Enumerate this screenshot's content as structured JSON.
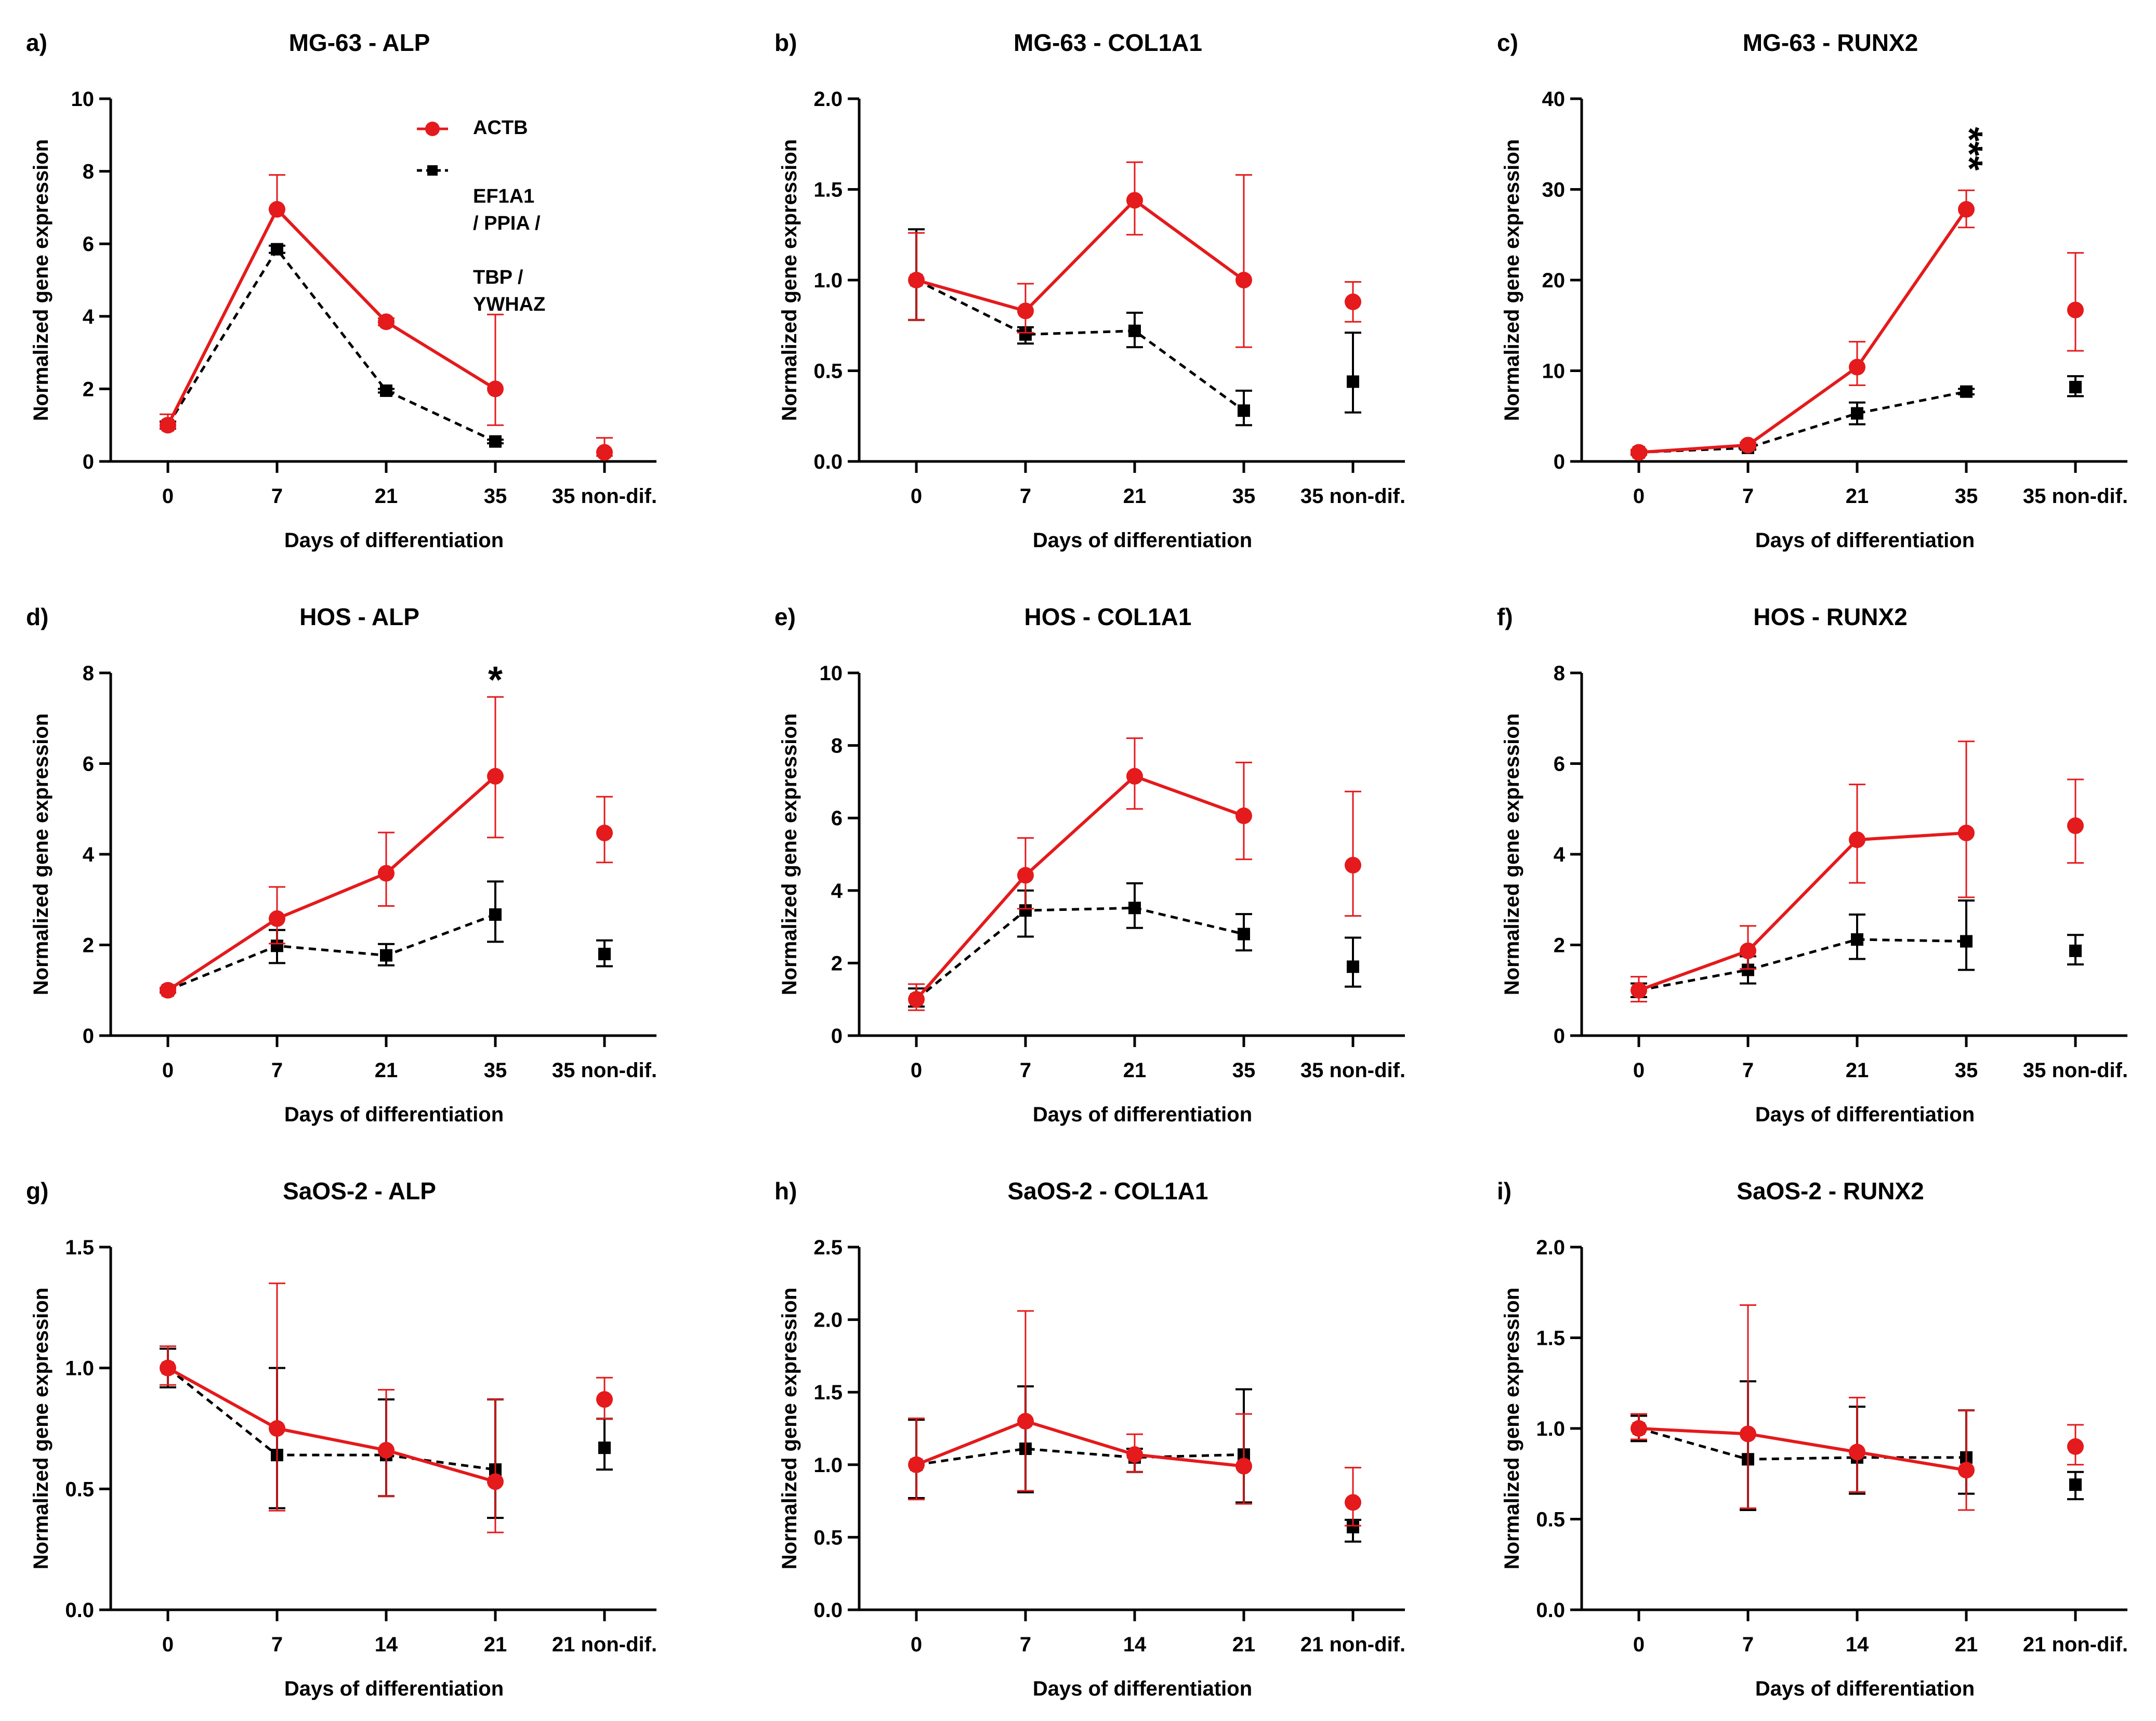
{
  "colors": {
    "actb": "#e41a1c",
    "ref": "#000000"
  },
  "legend": {
    "actb_label": "ACTB",
    "ref_label_line1": "EF1A1 / PPIA /",
    "ref_label_line2": "TBP / YWHAZ"
  },
  "chart_data": [
    {
      "id": "a",
      "letter": "a)",
      "title": "MG-63 - ALP",
      "type": "line",
      "xlabel": "Days of differentiation",
      "ylabel": "Normalized gene expression",
      "categories": [
        "0",
        "7",
        "21",
        "35",
        "35 non-dif."
      ],
      "ylim": [
        0,
        10
      ],
      "yticks": [
        0,
        2,
        4,
        6,
        8,
        10
      ],
      "yticklabels": [
        "0",
        "2",
        "4",
        "6",
        "8",
        "10"
      ],
      "significance": [],
      "series": [
        {
          "name": "ACTB",
          "values": [
            1.0,
            6.95,
            3.85,
            2.0,
            0.25
          ],
          "err_up": [
            0.3,
            0.95,
            0.1,
            2.05,
            0.4
          ],
          "err_down": [
            0.1,
            0.0,
            0.1,
            1.0,
            0.1
          ]
        },
        {
          "name": "EF1A1 / PPIA / TBP / YWHAZ",
          "values": [
            1.0,
            5.85,
            1.95,
            0.55,
            null
          ],
          "err_up": [
            0.1,
            0.1,
            0.05,
            0.05,
            0
          ],
          "err_down": [
            0.1,
            0.1,
            0.05,
            0.05,
            0
          ]
        }
      ]
    },
    {
      "id": "b",
      "letter": "b)",
      "title": "MG-63 - COL1A1",
      "type": "line",
      "xlabel": "Days of differentiation",
      "ylabel": "Normalized gene expression",
      "categories": [
        "0",
        "7",
        "21",
        "35",
        "35 non-dif."
      ],
      "ylim": [
        0,
        2.0
      ],
      "yticks": [
        0,
        0.5,
        1.0,
        1.5,
        2.0
      ],
      "yticklabels": [
        "0.0",
        "0.5",
        "1.0",
        "1.5",
        "2.0"
      ],
      "significance": [],
      "series": [
        {
          "name": "ACTB",
          "values": [
            1.0,
            0.83,
            1.44,
            1.0,
            0.88
          ],
          "err_up": [
            0.26,
            0.15,
            0.21,
            0.58,
            0.11
          ],
          "err_down": [
            0.22,
            0.12,
            0.19,
            0.37,
            0.11
          ]
        },
        {
          "name": "EF1A1 / PPIA / TBP / YWHAZ",
          "values": [
            1.0,
            0.7,
            0.72,
            0.28,
            0.44
          ],
          "err_up": [
            0.28,
            0.04,
            0.1,
            0.11,
            0.27
          ],
          "err_down": [
            0.22,
            0.05,
            0.09,
            0.08,
            0.17
          ]
        }
      ]
    },
    {
      "id": "c",
      "letter": "c)",
      "title": "MG-63 - RUNX2",
      "type": "line",
      "xlabel": "Days of differentiation",
      "ylabel": "Normalized gene expression",
      "categories": [
        "0",
        "7",
        "21",
        "35",
        "35 non-dif."
      ],
      "ylim": [
        0,
        40
      ],
      "yticks": [
        0,
        10,
        20,
        30,
        40
      ],
      "yticklabels": [
        "0",
        "10",
        "20",
        "30",
        "40"
      ],
      "significance": [
        {
          "category": "35",
          "label": "***",
          "vertical": true
        }
      ],
      "series": [
        {
          "name": "ACTB",
          "values": [
            1.0,
            1.8,
            10.4,
            27.8,
            16.7
          ],
          "err_up": [
            0.3,
            0.3,
            2.8,
            2.1,
            6.3
          ],
          "err_down": [
            0.3,
            0.3,
            2.0,
            2.0,
            4.5
          ]
        },
        {
          "name": "EF1A1 / PPIA / TBP / YWHAZ",
          "values": [
            1.0,
            1.5,
            5.3,
            7.7,
            8.2
          ],
          "err_up": [
            0.2,
            0.2,
            1.2,
            0.3,
            1.2
          ],
          "err_down": [
            0.2,
            0.2,
            1.2,
            0.3,
            1.0
          ]
        }
      ]
    },
    {
      "id": "d",
      "letter": "d)",
      "title": "HOS - ALP",
      "type": "line",
      "xlabel": "Days of differentiation",
      "ylabel": "Normalized gene expression",
      "categories": [
        "0",
        "7",
        "21",
        "35",
        "35 non-dif."
      ],
      "ylim": [
        0,
        8
      ],
      "yticks": [
        0,
        2,
        4,
        6,
        8
      ],
      "yticklabels": [
        "0",
        "2",
        "4",
        "6",
        "8"
      ],
      "significance": [
        {
          "category": "35",
          "label": "*",
          "vertical": false
        }
      ],
      "series": [
        {
          "name": "ACTB",
          "values": [
            1.0,
            2.58,
            3.58,
            5.72,
            4.47
          ],
          "err_up": [
            0.05,
            0.7,
            0.9,
            1.75,
            0.8
          ],
          "err_down": [
            0.05,
            0.55,
            0.72,
            1.35,
            0.65
          ]
        },
        {
          "name": "EF1A1 / PPIA / TBP / YWHAZ",
          "values": [
            1.0,
            1.98,
            1.77,
            2.67,
            1.8
          ],
          "err_up": [
            0.05,
            0.35,
            0.25,
            0.73,
            0.3
          ],
          "err_down": [
            0.05,
            0.38,
            0.22,
            0.6,
            0.27
          ]
        }
      ]
    },
    {
      "id": "e",
      "letter": "e)",
      "title": "HOS - COL1A1",
      "type": "line",
      "xlabel": "Days of differentiation",
      "ylabel": "Normalized gene expression",
      "categories": [
        "0",
        "7",
        "21",
        "35",
        "35 non-dif."
      ],
      "ylim": [
        0,
        10
      ],
      "yticks": [
        0,
        2,
        4,
        6,
        8,
        10
      ],
      "yticklabels": [
        "0",
        "2",
        "4",
        "6",
        "8",
        "10"
      ],
      "significance": [],
      "series": [
        {
          "name": "ACTB",
          "values": [
            1.0,
            4.42,
            7.15,
            6.06,
            4.7
          ],
          "err_up": [
            0.42,
            1.03,
            1.05,
            1.47,
            2.03
          ],
          "err_down": [
            0.3,
            0.92,
            0.9,
            1.2,
            1.4
          ]
        },
        {
          "name": "EF1A1 / PPIA / TBP / YWHAZ",
          "values": [
            1.0,
            3.45,
            3.52,
            2.8,
            1.9
          ],
          "err_up": [
            0.3,
            0.55,
            0.68,
            0.55,
            0.8
          ],
          "err_down": [
            0.2,
            0.72,
            0.55,
            0.45,
            0.55
          ]
        }
      ]
    },
    {
      "id": "f",
      "letter": "f)",
      "title": "HOS - RUNX2",
      "type": "line",
      "xlabel": "Days of differentiation",
      "ylabel": "Normalized gene expression",
      "categories": [
        "0",
        "7",
        "21",
        "35",
        "35 non-dif."
      ],
      "ylim": [
        0,
        8
      ],
      "yticks": [
        0,
        2,
        4,
        6,
        8
      ],
      "yticklabels": [
        "0",
        "2",
        "4",
        "6",
        "8"
      ],
      "significance": [],
      "series": [
        {
          "name": "ACTB",
          "values": [
            1.0,
            1.87,
            4.32,
            4.47,
            4.63
          ],
          "err_up": [
            0.3,
            0.55,
            1.22,
            2.02,
            1.02
          ],
          "err_down": [
            0.25,
            0.4,
            0.95,
            1.42,
            0.82
          ]
        },
        {
          "name": "EF1A1 / PPIA / TBP / YWHAZ",
          "values": [
            1.0,
            1.45,
            2.12,
            2.08,
            1.87
          ],
          "err_up": [
            0.15,
            0.3,
            0.55,
            0.9,
            0.35
          ],
          "err_down": [
            0.15,
            0.3,
            0.43,
            0.63,
            0.3
          ]
        }
      ]
    },
    {
      "id": "g",
      "letter": "g)",
      "title": "SaOS-2 - ALP",
      "type": "line",
      "xlabel": "Days of differentiation",
      "ylabel": "Normalized gene expression",
      "categories": [
        "0",
        "7",
        "14",
        "21",
        "21 non-dif."
      ],
      "ylim": [
        0,
        1.5
      ],
      "yticks": [
        0,
        0.5,
        1.0,
        1.5
      ],
      "yticklabels": [
        "0.0",
        "0.5",
        "1.0",
        "1.5"
      ],
      "significance": [],
      "series": [
        {
          "name": "ACTB",
          "values": [
            1.0,
            0.75,
            0.66,
            0.53,
            0.87
          ],
          "err_up": [
            0.09,
            0.6,
            0.25,
            0.34,
            0.09
          ],
          "err_down": [
            0.07,
            0.34,
            0.19,
            0.21,
            0.08
          ]
        },
        {
          "name": "EF1A1 / PPIA / TBP / YWHAZ",
          "values": [
            1.0,
            0.64,
            0.64,
            0.58,
            0.67
          ],
          "err_up": [
            0.08,
            0.36,
            0.23,
            0.29,
            0.12
          ],
          "err_down": [
            0.08,
            0.22,
            0.17,
            0.2,
            0.09
          ]
        }
      ]
    },
    {
      "id": "h",
      "letter": "h)",
      "title": "SaOS-2 - COL1A1",
      "type": "line",
      "xlabel": "Days of differentiation",
      "ylabel": "Normalized gene expression",
      "categories": [
        "0",
        "7",
        "14",
        "21",
        "21 non-dif."
      ],
      "ylim": [
        0,
        2.5
      ],
      "yticks": [
        0,
        0.5,
        1.0,
        1.5,
        2.0,
        2.5
      ],
      "yticklabels": [
        "0.0",
        "0.5",
        "1.0",
        "1.5",
        "2.0",
        "2.5"
      ],
      "significance": [],
      "series": [
        {
          "name": "ACTB",
          "values": [
            1.0,
            1.3,
            1.07,
            0.99,
            0.74
          ],
          "err_up": [
            0.32,
            0.76,
            0.14,
            0.36,
            0.24
          ],
          "err_down": [
            0.24,
            0.48,
            0.12,
            0.26,
            0.16
          ]
        },
        {
          "name": "EF1A1 / PPIA / TBP / YWHAZ",
          "values": [
            1.0,
            1.11,
            1.05,
            1.07,
            0.57
          ],
          "err_up": [
            0.31,
            0.43,
            0.06,
            0.45,
            0.05
          ],
          "err_down": [
            0.23,
            0.3,
            0.1,
            0.33,
            0.1
          ]
        }
      ]
    },
    {
      "id": "i",
      "letter": "i)",
      "title": "SaOS-2 - RUNX2",
      "type": "line",
      "xlabel": "Days of differentiation",
      "ylabel": "Normalized gene expression",
      "categories": [
        "0",
        "7",
        "14",
        "21",
        "21 non-dif."
      ],
      "ylim": [
        0,
        2.0
      ],
      "yticks": [
        0,
        0.5,
        1.0,
        1.5,
        2.0
      ],
      "yticklabels": [
        "0.0",
        "0.5",
        "1.0",
        "1.5",
        "2.0"
      ],
      "significance": [],
      "series": [
        {
          "name": "ACTB",
          "values": [
            1.0,
            0.97,
            0.87,
            0.77,
            0.9
          ],
          "err_up": [
            0.08,
            0.71,
            0.3,
            0.33,
            0.12
          ],
          "err_down": [
            0.06,
            0.41,
            0.22,
            0.22,
            0.1
          ]
        },
        {
          "name": "EF1A1 / PPIA / TBP / YWHAZ",
          "values": [
            1.0,
            0.83,
            0.84,
            0.84,
            0.69
          ],
          "err_up": [
            0.07,
            0.43,
            0.28,
            0.26,
            0.07
          ],
          "err_down": [
            0.07,
            0.28,
            0.2,
            0.2,
            0.08
          ]
        }
      ]
    }
  ]
}
